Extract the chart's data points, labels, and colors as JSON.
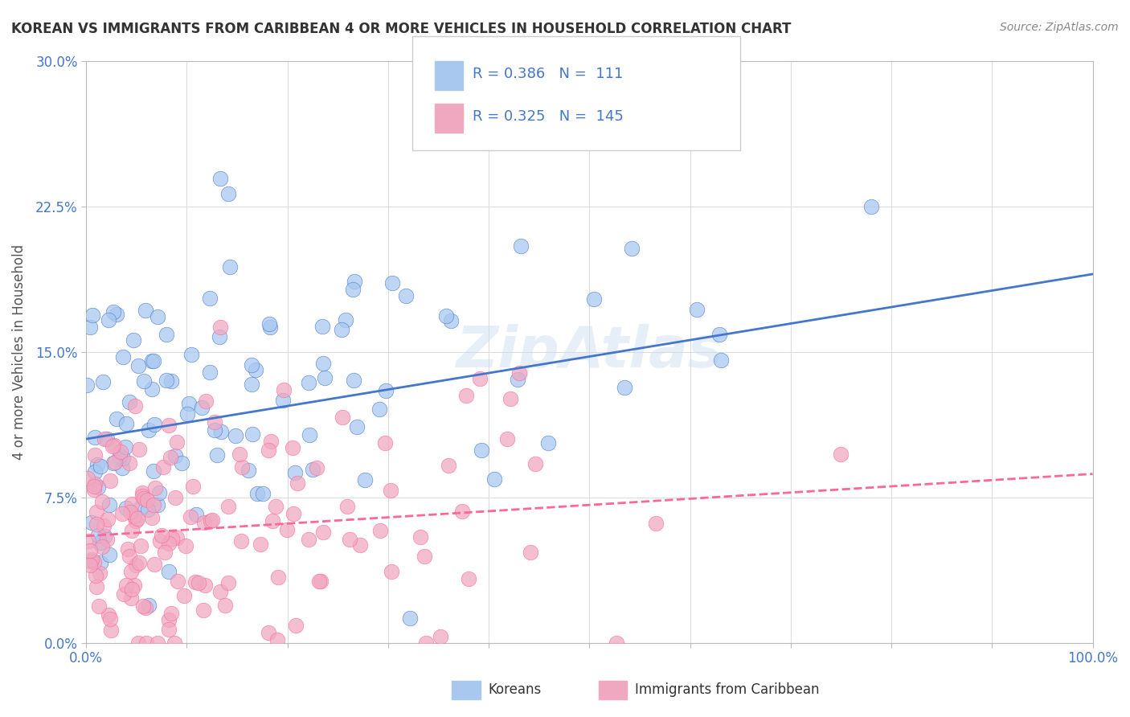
{
  "title": "KOREAN VS IMMIGRANTS FROM CARIBBEAN 4 OR MORE VEHICLES IN HOUSEHOLD CORRELATION CHART",
  "source": "Source: ZipAtlas.com",
  "xlabel": "",
  "ylabel": "4 or more Vehicles in Household",
  "xlim": [
    0,
    100
  ],
  "ylim": [
    0,
    30
  ],
  "xticks": [
    0,
    10,
    20,
    30,
    40,
    50,
    60,
    70,
    80,
    90,
    100
  ],
  "yticks": [
    0,
    7.5,
    15.0,
    22.5,
    30.0
  ],
  "blue_R": 0.386,
  "blue_N": 111,
  "pink_R": 0.325,
  "pink_N": 145,
  "blue_color": "#a8c8f0",
  "pink_color": "#f0a8c0",
  "blue_line_color": "#4477cc",
  "pink_line_color": "#ff6699",
  "legend_label_blue": "Koreans",
  "legend_label_pink": "Immigrants from Caribbean",
  "watermark": "ZipAtlas",
  "background_color": "#ffffff",
  "grid_color": "#dddddd",
  "title_color": "#333333",
  "axis_label_color": "#555555",
  "tick_color": "#4477cc",
  "stat_color": "#4477cc",
  "blue_seed": 42,
  "pink_seed": 77,
  "blue_trend_intercept": 10.5,
  "blue_trend_slope": 0.085,
  "pink_trend_intercept": 5.5,
  "pink_trend_slope": 0.032
}
